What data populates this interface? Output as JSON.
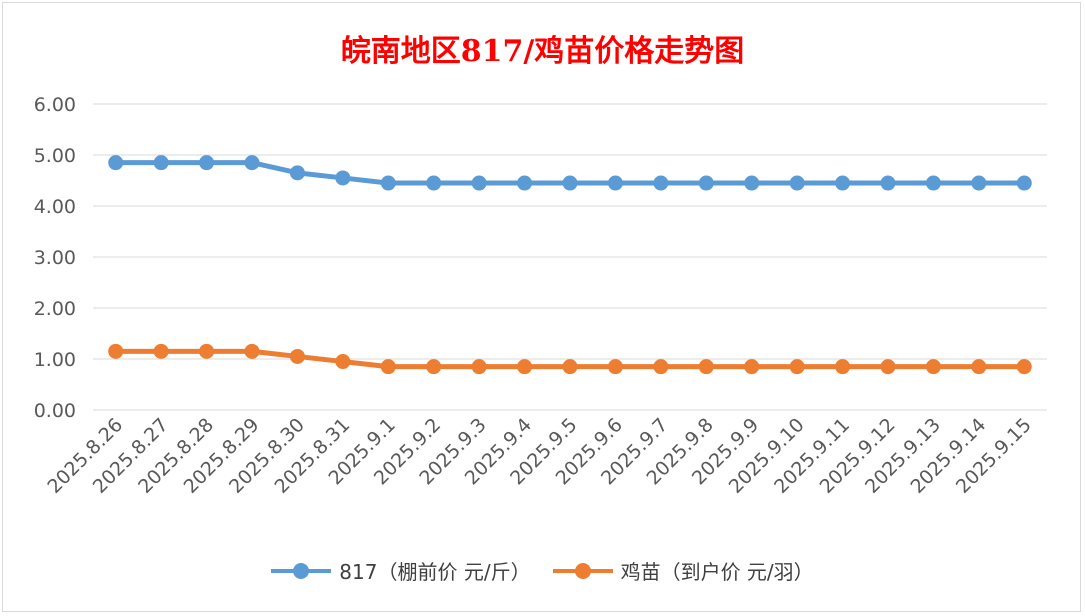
{
  "chart_data": {
    "type": "line",
    "title": "皖南地区817/鸡苗价格走势图",
    "categories": [
      "2025.8.26",
      "2025.8.27",
      "2025.8.28",
      "2025.8.29",
      "2025.8.30",
      "2025.8.31",
      "2025.9.1",
      "2025.9.2",
      "2025.9.3",
      "2025.9.4",
      "2025.9.5",
      "2025.9.6",
      "2025.9.7",
      "2025.9.8",
      "2025.9.9",
      "2025.9.10",
      "2025.9.11",
      "2025.9.12",
      "2025.9.13",
      "2025.9.14",
      "2025.9.15"
    ],
    "ylim": [
      0,
      6
    ],
    "yticks": [
      "0.00",
      "1.00",
      "2.00",
      "3.00",
      "4.00",
      "5.00",
      "6.00"
    ],
    "grid": true,
    "legend_position": "bottom",
    "series": [
      {
        "name": "817（棚前价 元/斤）",
        "color": "#5b9bd5",
        "values": [
          4.85,
          4.85,
          4.85,
          4.85,
          4.65,
          4.55,
          4.45,
          4.45,
          4.45,
          4.45,
          4.45,
          4.45,
          4.45,
          4.45,
          4.45,
          4.45,
          4.45,
          4.45,
          4.45,
          4.45,
          4.45
        ]
      },
      {
        "name": "鸡苗（到户价 元/羽）",
        "color": "#ed7d31",
        "values": [
          1.15,
          1.15,
          1.15,
          1.15,
          1.05,
          0.95,
          0.85,
          0.85,
          0.85,
          0.85,
          0.85,
          0.85,
          0.85,
          0.85,
          0.85,
          0.85,
          0.85,
          0.85,
          0.85,
          0.85,
          0.85
        ]
      }
    ]
  }
}
